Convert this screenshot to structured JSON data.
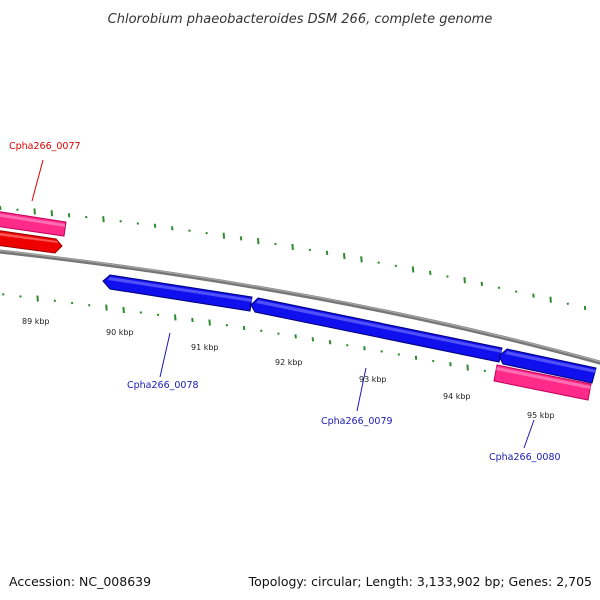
{
  "title": "Chlorobium phaeobacteroides DSM 266, complete genome",
  "footer": {
    "accession": "Accession: NC_008639",
    "summary": "Topology: circular; Length: 3,133,902 bp; Genes: 2,705"
  },
  "scale_labels": [
    "89 kbp",
    "90 kbp",
    "91 kbp",
    "92 kbp",
    "93 kbp",
    "94 kbp",
    "95 kbp"
  ],
  "genes": [
    {
      "id": "Cpha266_0077",
      "color": "#dd0000"
    },
    {
      "id": "Cpha266_0078",
      "color": "#1a1ab4"
    },
    {
      "id": "Cpha266_0079",
      "color": "#1a1ab4"
    },
    {
      "id": "Cpha266_0080",
      "color": "#1a1ab4"
    }
  ],
  "colors": {
    "backbone": "#888888",
    "forward_gene": "#ff2a8a",
    "forward_cds": "#ee0000",
    "reverse_cds": "#1010ee",
    "gc_ticks": "#2e8b2e"
  }
}
